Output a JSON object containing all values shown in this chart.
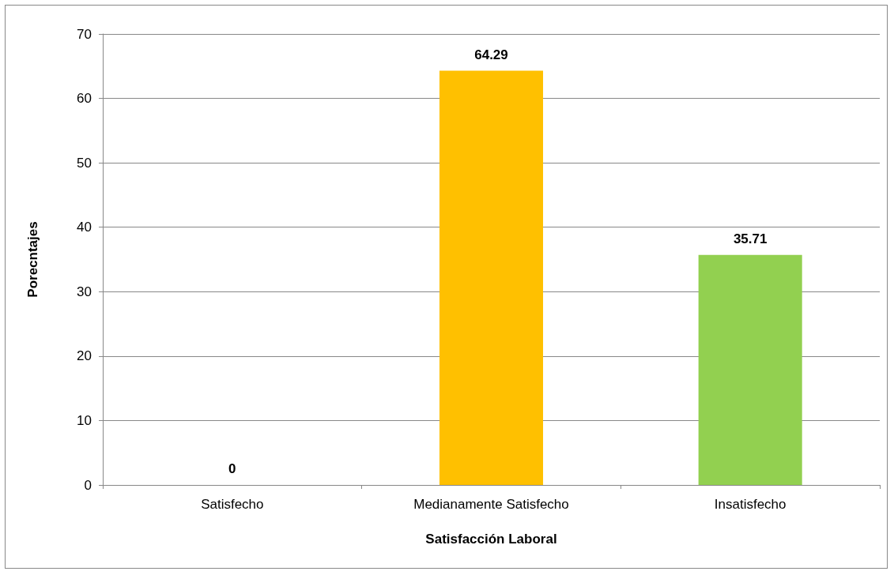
{
  "chart_data": {
    "type": "bar",
    "xlabel": "Satisfacción Laboral",
    "ylabel": "Porecntajes",
    "categories": [
      "Satisfecho",
      "Medianamente Satisfecho",
      "Insatisfecho"
    ],
    "values": [
      0,
      64.29,
      35.71
    ],
    "colors": [
      "#4f81bd",
      "#ffc000",
      "#92d050"
    ],
    "ylim": [
      0,
      70
    ],
    "yticks": [
      0,
      10,
      20,
      30,
      40,
      50,
      60,
      70
    ],
    "grid": "y",
    "data_labels": true
  }
}
